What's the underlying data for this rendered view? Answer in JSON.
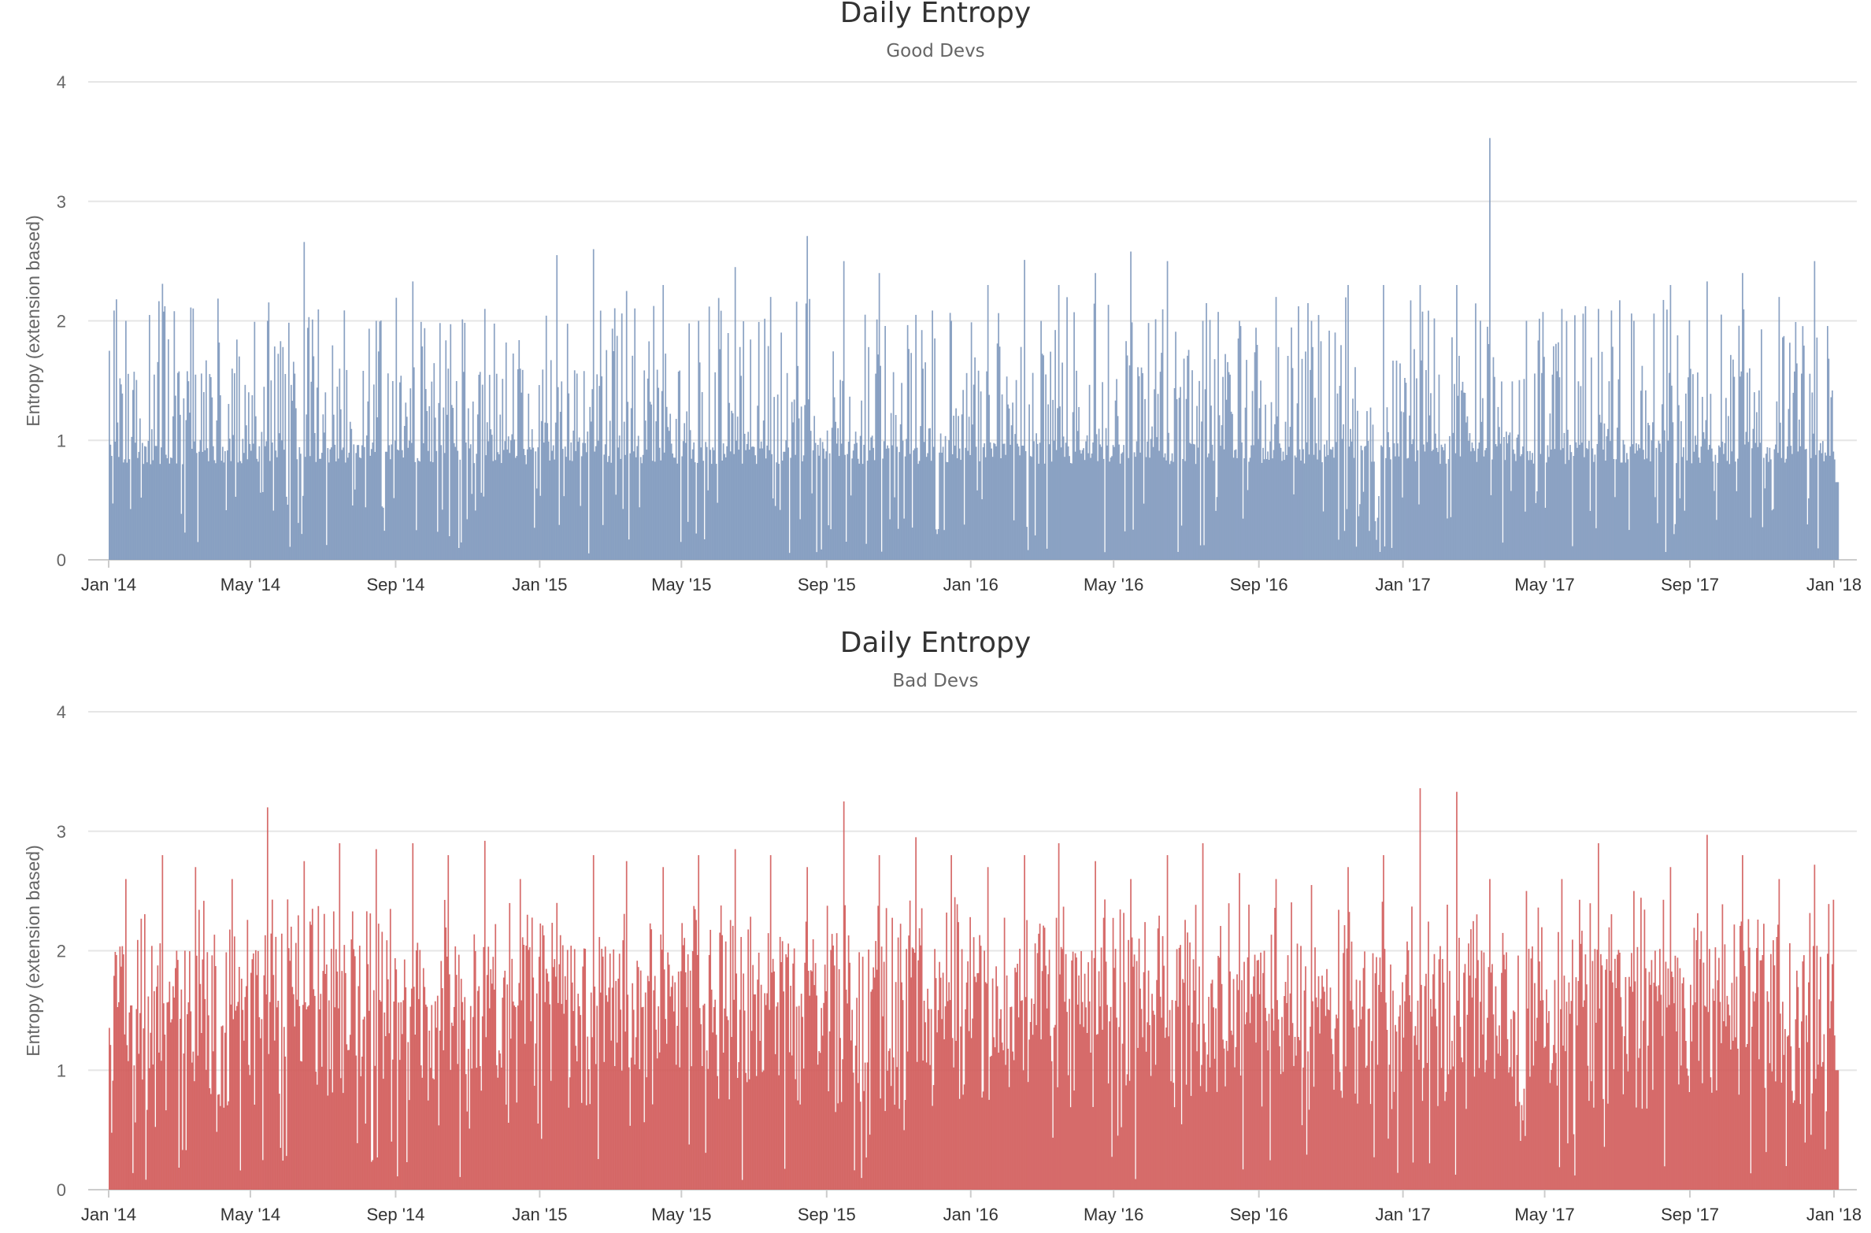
{
  "chart_data": [
    {
      "type": "bar",
      "title": "Daily Entropy",
      "subtitle": "Good Devs",
      "ylabel": "Entropy (extension based)",
      "xlabel": "",
      "ylim": [
        0,
        4
      ],
      "y_ticks": [
        "0",
        "1",
        "2",
        "3",
        "4"
      ],
      "x_range": [
        "2014-01-01",
        "2018-01-05"
      ],
      "x_ticks": [
        "Jan '14",
        "May '14",
        "Sep '14",
        "Jan '15",
        "May '15",
        "Sep '15",
        "Jan '16",
        "May '16",
        "Sep '16",
        "Jan '17",
        "May '17",
        "Sep '17",
        "Jan '18"
      ],
      "grid": true,
      "legend": "none",
      "color": "#7e98bd",
      "series": [
        {
          "x": [
            "2014-01-15",
            "2014-02-15",
            "2014-03-15",
            "2014-04-15",
            "2014-05-15",
            "2014-06-15",
            "2014-07-15",
            "2014-08-15",
            "2014-09-15",
            "2014-10-15",
            "2014-11-15",
            "2014-12-15",
            "2015-01-15",
            "2015-02-15",
            "2015-03-15",
            "2015-04-15",
            "2015-05-15",
            "2015-06-15",
            "2015-07-15",
            "2015-08-15",
            "2015-09-15",
            "2015-10-15",
            "2015-11-15",
            "2015-12-15",
            "2016-01-15",
            "2016-02-15",
            "2016-03-15",
            "2016-04-15",
            "2016-05-15",
            "2016-06-15",
            "2016-07-15",
            "2016-08-15",
            "2016-09-15",
            "2016-10-15",
            "2016-11-15",
            "2016-12-15",
            "2017-01-15",
            "2017-02-15",
            "2017-03-15",
            "2017-04-15",
            "2017-05-15",
            "2017-06-15",
            "2017-07-15",
            "2017-08-15",
            "2017-09-15",
            "2017-10-15",
            "2017-11-15",
            "2017-12-15"
          ],
          "values": [
            2.0,
            2.31,
            1.55,
            1.6,
            2.0,
            2.66,
            1.6,
            2.0,
            2.33,
            1.6,
            2.1,
            1.6,
            2.55,
            2.6,
            2.25,
            2.3,
            2.0,
            2.45,
            2.2,
            2.71,
            2.5,
            2.4,
            2.05,
            2.0,
            2.3,
            2.51,
            2.3,
            2.4,
            2.58,
            2.5,
            2.0,
            2.0,
            2.2,
            2.0,
            2.3,
            2.3,
            2.3,
            2.3,
            3.53,
            2.0,
            2.1,
            2.1,
            2.0,
            2.3,
            2.33,
            2.4,
            2.2,
            2.5
          ]
        }
      ]
    },
    {
      "type": "bar",
      "title": "Daily Entropy",
      "subtitle": "Bad Devs",
      "ylabel": "Entropy (extension based)",
      "xlabel": "",
      "ylim": [
        0,
        4
      ],
      "y_ticks": [
        "0",
        "1",
        "2",
        "3",
        "4"
      ],
      "x_range": [
        "2014-01-01",
        "2018-01-05"
      ],
      "x_ticks": [
        "Jan '14",
        "May '14",
        "Sep '14",
        "Jan '15",
        "May '15",
        "Sep '15",
        "Jan '16",
        "May '16",
        "Sep '16",
        "Jan '17",
        "May '17",
        "Sep '17",
        "Jan '18"
      ],
      "grid": true,
      "legend": "none",
      "color": "#d15b5a",
      "series": [
        {
          "x": [
            "2014-01-15",
            "2014-02-15",
            "2014-03-15",
            "2014-04-15",
            "2014-05-15",
            "2014-06-15",
            "2014-07-15",
            "2014-08-15",
            "2014-09-15",
            "2014-10-15",
            "2014-11-15",
            "2014-12-15",
            "2015-01-15",
            "2015-02-15",
            "2015-03-15",
            "2015-04-15",
            "2015-05-15",
            "2015-06-15",
            "2015-07-15",
            "2015-08-15",
            "2015-09-15",
            "2015-10-15",
            "2015-11-15",
            "2015-12-15",
            "2016-01-15",
            "2016-02-15",
            "2016-03-15",
            "2016-04-15",
            "2016-05-15",
            "2016-06-15",
            "2016-07-15",
            "2016-08-15",
            "2016-09-15",
            "2016-10-15",
            "2016-11-15",
            "2016-12-15",
            "2017-01-15",
            "2017-02-15",
            "2017-03-15",
            "2017-04-15",
            "2017-05-15",
            "2017-06-15",
            "2017-07-15",
            "2017-08-15",
            "2017-09-15",
            "2017-10-15",
            "2017-11-15",
            "2017-12-15"
          ],
          "values": [
            2.6,
            2.8,
            2.7,
            2.6,
            3.2,
            2.75,
            2.9,
            2.85,
            2.9,
            2.8,
            2.92,
            2.6,
            2.4,
            2.8,
            2.75,
            2.7,
            2.8,
            2.85,
            2.8,
            2.7,
            3.25,
            2.8,
            2.95,
            2.8,
            2.7,
            2.8,
            2.9,
            2.75,
            2.6,
            2.8,
            2.9,
            2.65,
            2.6,
            2.55,
            2.7,
            2.8,
            3.36,
            3.33,
            2.6,
            2.5,
            2.6,
            2.9,
            2.5,
            2.7,
            2.97,
            2.8,
            2.6,
            2.72
          ]
        }
      ]
    }
  ]
}
